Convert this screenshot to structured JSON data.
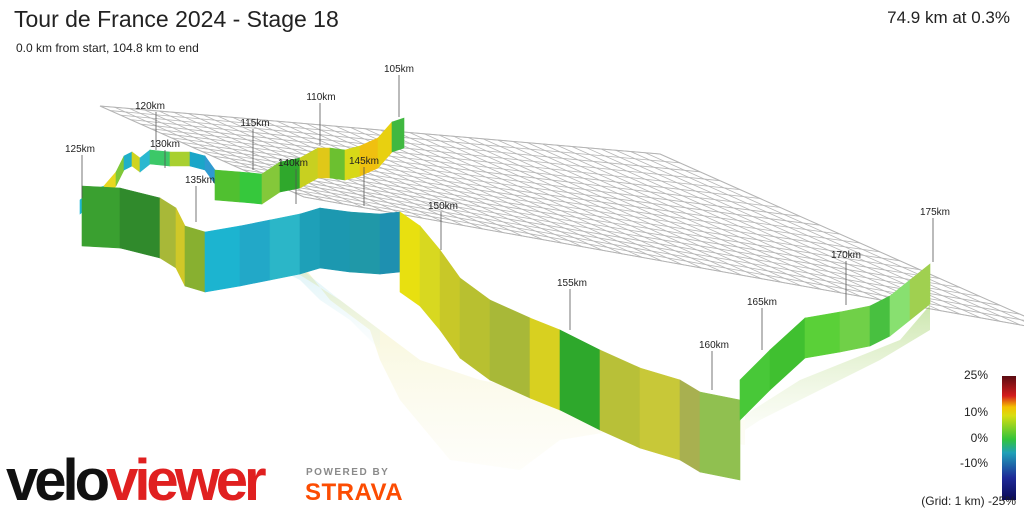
{
  "header": {
    "title": "Tour de France 2024 - Stage 18",
    "subtitle": "0.0 km from start, 104.8 km to end",
    "stat": "74.9 km at 0.3%"
  },
  "profile": {
    "km_markers": [
      "105km",
      "110km",
      "115km",
      "120km",
      "125km",
      "130km",
      "135km",
      "140km",
      "145km",
      "150km",
      "155km",
      "160km",
      "165km",
      "170km",
      "175km"
    ]
  },
  "legend": {
    "ticks": [
      "25%",
      "10%",
      "0%",
      "-10%",
      "-25%"
    ],
    "grid_note": "(Grid: 1 km)"
  },
  "branding": {
    "logo_velo": "velo",
    "logo_viewer": "viewer",
    "powered_by": "POWERED BY",
    "strava": "STRAVA"
  },
  "colors": {
    "grid": "#b5b5b5",
    "strava": "#fc4c02",
    "logo_red": "#e02020"
  }
}
